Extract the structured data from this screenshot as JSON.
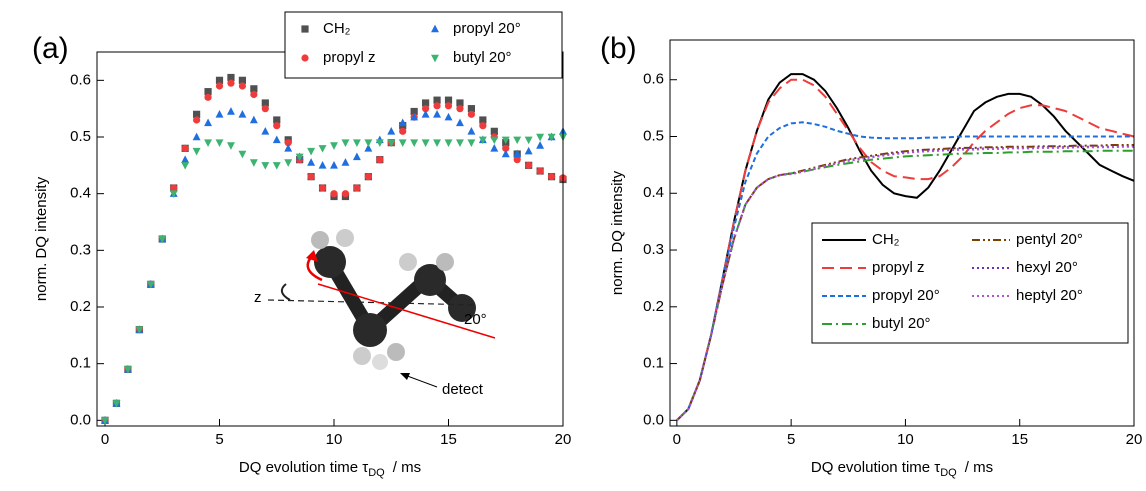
{
  "chart_data": [
    {
      "type": "scatter",
      "panel_label": "(a)",
      "xlabel": {
        "text": "DQ evolution time τ",
        "sub": "DQ",
        "unit": "/ ms"
      },
      "ylabel": "norm. DQ intensity",
      "x": [
        0,
        0.5,
        1,
        1.5,
        2,
        2.5,
        3,
        3.5,
        4,
        4.5,
        5,
        5.5,
        6,
        6.5,
        7,
        7.5,
        8,
        8.5,
        9,
        9.5,
        10,
        10.5,
        11,
        11.5,
        12,
        12.5,
        13,
        13.5,
        14,
        14.5,
        15,
        15.5,
        16,
        16.5,
        17,
        17.5,
        18,
        18.5,
        19,
        19.5,
        20
      ],
      "series": [
        {
          "name": "CH₂",
          "color": "#505050",
          "marker": "square",
          "values": [
            0,
            0.03,
            0.09,
            0.16,
            0.24,
            0.32,
            0.41,
            0.48,
            0.54,
            0.58,
            0.6,
            0.605,
            0.6,
            0.585,
            0.56,
            0.53,
            0.495,
            0.46,
            0.43,
            0.41,
            0.395,
            0.395,
            0.41,
            0.43,
            0.46,
            0.49,
            0.52,
            0.545,
            0.56,
            0.565,
            0.565,
            0.56,
            0.55,
            0.53,
            0.51,
            0.49,
            0.47,
            0.45,
            0.44,
            0.43,
            0.425
          ]
        },
        {
          "name": "propyl z",
          "color": "#ef3b3b",
          "marker": "circle",
          "values": [
            0,
            0.03,
            0.09,
            0.16,
            0.24,
            0.32,
            0.41,
            0.48,
            0.53,
            0.57,
            0.59,
            0.595,
            0.59,
            0.575,
            0.55,
            0.52,
            0.49,
            0.46,
            0.43,
            0.41,
            0.4,
            0.4,
            0.41,
            0.43,
            0.46,
            0.49,
            0.51,
            0.535,
            0.55,
            0.555,
            0.555,
            0.55,
            0.54,
            0.52,
            0.5,
            0.48,
            0.46,
            0.45,
            0.44,
            0.43,
            0.428
          ]
        },
        {
          "name": "propyl 20°",
          "color": "#1f6fe0",
          "marker": "triangle-up",
          "values": [
            0,
            0.03,
            0.09,
            0.16,
            0.24,
            0.32,
            0.4,
            0.46,
            0.5,
            0.525,
            0.54,
            0.545,
            0.54,
            0.53,
            0.51,
            0.495,
            0.48,
            0.465,
            0.455,
            0.45,
            0.45,
            0.455,
            0.465,
            0.48,
            0.495,
            0.51,
            0.525,
            0.535,
            0.54,
            0.54,
            0.535,
            0.525,
            0.51,
            0.495,
            0.48,
            0.47,
            0.47,
            0.475,
            0.485,
            0.5,
            0.51
          ]
        },
        {
          "name": "butyl 20°",
          "color": "#3cb371",
          "marker": "triangle-down",
          "values": [
            0,
            0.03,
            0.09,
            0.16,
            0.24,
            0.32,
            0.4,
            0.45,
            0.475,
            0.49,
            0.49,
            0.485,
            0.47,
            0.455,
            0.45,
            0.45,
            0.455,
            0.465,
            0.475,
            0.48,
            0.485,
            0.49,
            0.49,
            0.49,
            0.49,
            0.49,
            0.49,
            0.49,
            0.49,
            0.49,
            0.49,
            0.49,
            0.49,
            0.495,
            0.495,
            0.495,
            0.495,
            0.495,
            0.5,
            0.5,
            0.5
          ]
        }
      ],
      "xlim": [
        -0.35,
        20
      ],
      "ylim": [
        -0.01,
        0.65
      ],
      "xticks": [
        0,
        5,
        10,
        15,
        20
      ],
      "yticks": [
        {
          "value": 0,
          "label": "0.0"
        },
        0.1,
        0.2,
        0.3,
        0.4,
        0.5,
        0.6
      ],
      "legend": "above",
      "legend_columns": 2,
      "annotations": [
        "z",
        "20°",
        "detect"
      ]
    },
    {
      "type": "line",
      "panel_label": "(b)",
      "xlabel": {
        "text": "DQ evolution time τ",
        "sub": "DQ",
        "unit": "/ ms"
      },
      "ylabel": "norm. DQ intensity",
      "x": [
        0,
        0.5,
        1,
        1.5,
        2,
        2.5,
        3,
        3.5,
        4,
        4.5,
        5,
        5.5,
        6,
        6.5,
        7,
        7.5,
        8,
        8.5,
        9,
        9.5,
        10,
        10.5,
        11,
        11.5,
        12,
        12.5,
        13,
        13.5,
        14,
        14.5,
        15,
        15.5,
        16,
        16.5,
        17,
        17.5,
        18,
        18.5,
        19,
        19.5,
        20
      ],
      "series": [
        {
          "name": "CH₂",
          "color": "#000000",
          "style": "solid",
          "values": [
            0,
            0.02,
            0.07,
            0.15,
            0.25,
            0.35,
            0.44,
            0.51,
            0.565,
            0.595,
            0.61,
            0.61,
            0.6,
            0.58,
            0.55,
            0.515,
            0.475,
            0.44,
            0.415,
            0.4,
            0.395,
            0.392,
            0.41,
            0.44,
            0.475,
            0.51,
            0.545,
            0.56,
            0.57,
            0.575,
            0.575,
            0.57,
            0.555,
            0.535,
            0.51,
            0.49,
            0.47,
            0.45,
            0.44,
            0.43,
            0.422
          ]
        },
        {
          "name": "propyl z",
          "color": "#ef3b3b",
          "style": "dashed",
          "values": [
            0,
            0.02,
            0.07,
            0.15,
            0.25,
            0.35,
            0.44,
            0.51,
            0.56,
            0.585,
            0.6,
            0.6,
            0.59,
            0.57,
            0.54,
            0.51,
            0.48,
            0.455,
            0.44,
            0.43,
            0.428,
            0.425,
            0.425,
            0.43,
            0.445,
            0.465,
            0.49,
            0.51,
            0.525,
            0.54,
            0.55,
            0.555,
            0.555,
            0.55,
            0.545,
            0.535,
            0.525,
            0.515,
            0.51,
            0.505,
            0.5
          ]
        },
        {
          "name": "propyl 20°",
          "color": "#1f6fe0",
          "style": "short-dash",
          "values": [
            0,
            0.02,
            0.07,
            0.15,
            0.25,
            0.34,
            0.42,
            0.47,
            0.5,
            0.515,
            0.523,
            0.525,
            0.522,
            0.517,
            0.51,
            0.505,
            0.5,
            0.498,
            0.497,
            0.497,
            0.497,
            0.497,
            0.498,
            0.498,
            0.499,
            0.5,
            0.5,
            0.5,
            0.5,
            0.5,
            0.5,
            0.5,
            0.5,
            0.5,
            0.5,
            0.5,
            0.5,
            0.5,
            0.5,
            0.5,
            0.5
          ]
        },
        {
          "name": "butyl 20°",
          "color": "#2ca02c",
          "style": "dash-dot",
          "values": [
            0,
            0.02,
            0.07,
            0.15,
            0.24,
            0.32,
            0.38,
            0.41,
            0.425,
            0.432,
            0.435,
            0.438,
            0.442,
            0.446,
            0.45,
            0.453,
            0.456,
            0.459,
            0.461,
            0.463,
            0.465,
            0.466,
            0.467,
            0.468,
            0.469,
            0.47,
            0.47,
            0.471,
            0.471,
            0.472,
            0.472,
            0.473,
            0.473,
            0.473,
            0.474,
            0.474,
            0.474,
            0.475,
            0.475,
            0.475,
            0.475
          ]
        },
        {
          "name": "pentyl 20°",
          "color": "#7b3f00",
          "style": "dash-dot-dot",
          "values": [
            0,
            0.02,
            0.07,
            0.15,
            0.24,
            0.32,
            0.38,
            0.41,
            0.425,
            0.432,
            0.435,
            0.44,
            0.445,
            0.45,
            0.455,
            0.46,
            0.463,
            0.466,
            0.469,
            0.472,
            0.474,
            0.476,
            0.477,
            0.478,
            0.479,
            0.48,
            0.48,
            0.481,
            0.481,
            0.482,
            0.482,
            0.482,
            0.483,
            0.483,
            0.483,
            0.484,
            0.484,
            0.484,
            0.485,
            0.485,
            0.485
          ]
        },
        {
          "name": "hexyl 20°",
          "color": "#6a2fc0",
          "style": "dot",
          "values": [
            0,
            0.02,
            0.07,
            0.15,
            0.24,
            0.32,
            0.38,
            0.41,
            0.425,
            0.432,
            0.434,
            0.438,
            0.443,
            0.448,
            0.453,
            0.458,
            0.461,
            0.464,
            0.467,
            0.47,
            0.472,
            0.474,
            0.475,
            0.476,
            0.477,
            0.478,
            0.478,
            0.479,
            0.479,
            0.48,
            0.48,
            0.48,
            0.481,
            0.481,
            0.481,
            0.482,
            0.482,
            0.482,
            0.482,
            0.483,
            0.483
          ]
        },
        {
          "name": "heptyl 20°",
          "color": "#b04fd8",
          "style": "dot",
          "values": [
            0,
            0.02,
            0.07,
            0.15,
            0.24,
            0.32,
            0.38,
            0.41,
            0.425,
            0.432,
            0.434,
            0.438,
            0.443,
            0.448,
            0.453,
            0.457,
            0.46,
            0.463,
            0.466,
            0.469,
            0.471,
            0.473,
            0.474,
            0.475,
            0.476,
            0.477,
            0.477,
            0.478,
            0.478,
            0.479,
            0.479,
            0.479,
            0.48,
            0.48,
            0.48,
            0.481,
            0.481,
            0.481,
            0.481,
            0.482,
            0.482
          ]
        }
      ],
      "xlim": [
        -0.3,
        20
      ],
      "ylim": [
        -0.01,
        0.67
      ],
      "xticks": [
        0,
        5,
        10,
        15,
        20
      ],
      "yticks": [
        {
          "value": 0,
          "label": "0.0"
        },
        0.1,
        0.2,
        0.3,
        0.4,
        0.5,
        0.6
      ],
      "legend": "right",
      "legend_columns": 2
    }
  ]
}
